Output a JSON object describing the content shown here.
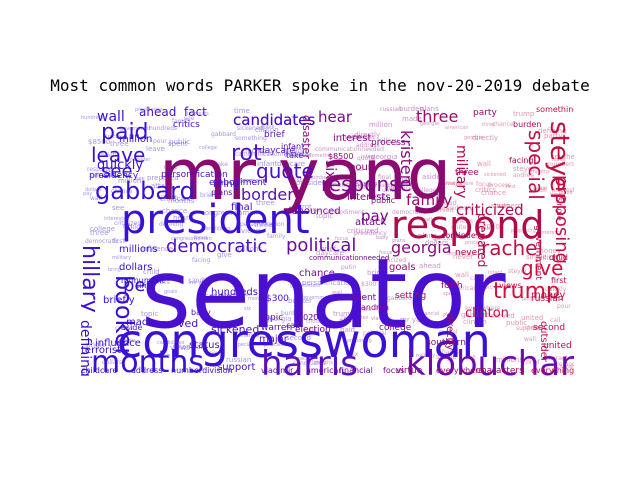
{
  "title": "Most common words PARKER spoke in the nov-20-2019 debate",
  "colors": {
    "blue": "#3a10d4",
    "purple": "#7a0a7c",
    "red": "#d4103a",
    "mid": "#9a0a60"
  },
  "words": [
    {
      "t": "senator",
      "c": "#4a10d0"
    },
    {
      "t": "mr yang",
      "c": "#8a0a70"
    },
    {
      "t": "congresswoman",
      "c": "#3a10d4"
    },
    {
      "t": "president",
      "c": "#3a10d4"
    },
    {
      "t": "respond",
      "c": "#b00a4a"
    },
    {
      "t": "harris",
      "c": "#5a10c0"
    },
    {
      "t": "klobuchar",
      "c": "#6a0ab0"
    },
    {
      "t": "months",
      "c": "#3a10d4"
    },
    {
      "t": "gabbard",
      "c": "#3a10d4"
    },
    {
      "t": "paid",
      "c": "#3a10d4"
    },
    {
      "t": "leave",
      "c": "#3a10d4"
    },
    {
      "t": "candidates",
      "c": "#4a10c8"
    },
    {
      "t": "quote",
      "c": "#4a10c8"
    },
    {
      "t": "response",
      "c": "#7a0a90"
    },
    {
      "t": "steyer",
      "c": "#c01040"
    },
    {
      "t": "booker",
      "c": "#3a10d4"
    },
    {
      "t": "democratic",
      "c": "#4a10c8"
    },
    {
      "t": "trump",
      "c": "#d01040"
    },
    {
      "t": "rachel",
      "c": "#c01048"
    },
    {
      "t": "give",
      "c": "#d01040"
    },
    {
      "t": "see",
      "c": "#3a10d4"
    },
    {
      "t": "border",
      "c": "#5a10b8"
    },
    {
      "t": "political",
      "c": "#6a0aa8"
    },
    {
      "t": "georgia",
      "c": "#8a0a80"
    },
    {
      "t": "special",
      "c": "#c01048"
    },
    {
      "t": "proposing",
      "c": "#c01048"
    },
    {
      "t": "kristen",
      "c": "#8a0a80"
    },
    {
      "t": "three",
      "c": "#9a0a68"
    },
    {
      "t": "family",
      "c": "#9a0a68"
    },
    {
      "t": "criticized",
      "c": "#b00a50"
    },
    {
      "t": "pay",
      "c": "#7a0a88"
    },
    {
      "t": "wall",
      "c": "#3a10d4"
    },
    {
      "t": "ahead",
      "c": "#4a10c8"
    },
    {
      "t": "fact",
      "c": "#4a10c8"
    },
    {
      "t": "hear",
      "c": "#7a0a90"
    },
    {
      "t": "rot",
      "c": "#4a10c8"
    },
    {
      "t": "six",
      "c": "#8a0a80"
    },
    {
      "t": "hillary",
      "c": "#3a10d4"
    },
    {
      "t": "per",
      "c": "#3a10d4"
    },
    {
      "t": "defining",
      "c": "#3a10d4"
    },
    {
      "t": "clinton",
      "c": "#c01048"
    },
    {
      "t": "military",
      "c": "#b00a50"
    },
    {
      "t": "quickly",
      "c": "#3a10d4"
    },
    {
      "t": "million",
      "c": "#3a10d4"
    },
    {
      "t": "served",
      "c": "#4a10c8"
    },
    {
      "t": "hundreds",
      "c": "#4a10c8"
    },
    {
      "t": "influence",
      "c": "#3a10d4"
    },
    {
      "t": "sickened",
      "c": "#4a10c8"
    },
    {
      "t": "terrorist",
      "c": "#3a10d4"
    },
    {
      "t": "status",
      "c": "#4a10c8"
    },
    {
      "t": "chance",
      "c": "#7a0a90"
    },
    {
      "t": "goals",
      "c": "#9a0a68"
    },
    {
      "t": "support",
      "c": "#4a10c8"
    },
    {
      "t": "major",
      "c": "#5a10b8"
    },
    {
      "t": "election",
      "c": "#6a0aa8"
    },
    {
      "t": "personification",
      "c": "#4a10c8"
    },
    {
      "t": "candidates",
      "c": "#4a10c8"
    },
    {
      "t": "pour",
      "c": "#8a0a80"
    },
    {
      "t": "disaster",
      "c": "#8a0a80"
    },
    {
      "t": "interest",
      "c": "#8a0a80"
    },
    {
      "t": "denounced",
      "c": "#6a0aa8"
    },
    {
      "t": "attack",
      "c": "#7a0a90"
    },
    {
      "t": "interests",
      "c": "#7a0a90"
    },
    {
      "t": "prepared",
      "c": "#b00a50"
    },
    {
      "t": "money",
      "c": "#c01048"
    },
    {
      "t": "outsider",
      "c": "#c01048"
    },
    {
      "t": "bring",
      "c": "#4a10c8"
    },
    {
      "t": "final",
      "c": "#4a10c8"
    },
    {
      "t": "briefly",
      "c": "#3a10d4"
    },
    {
      "t": "made",
      "c": "#3a10d4"
    },
    {
      "t": "dollars",
      "c": "#3a10d4"
    },
    {
      "t": "millions",
      "c": "#3a10d4"
    },
    {
      "t": "putin",
      "c": "#4a10c8"
    },
    {
      "t": "$300",
      "c": "#4a10c8"
    },
    {
      "t": "topic",
      "c": "#5a10b8"
    },
    {
      "t": "warren",
      "c": "#5a10b8"
    },
    {
      "t": "party",
      "c": "#9a0a68"
    },
    {
      "t": "forth",
      "c": "#9a0a68"
    },
    {
      "t": "second",
      "c": "#c01048"
    },
    {
      "t": "russian",
      "c": "#c01048"
    },
    {
      "t": "united",
      "c": "#c01048"
    },
    {
      "t": "setting",
      "c": "#b00a50"
    },
    {
      "t": "college",
      "c": "#8a0a80"
    },
    {
      "t": "spent",
      "c": "#8a0a80"
    },
    {
      "t": "southern",
      "c": "#8a0a80"
    },
    {
      "t": "virtue",
      "c": "#8a0a80"
    },
    {
      "t": "characters",
      "c": "#9a0a68"
    },
    {
      "t": "everything",
      "c": "#c01048"
    },
    {
      "t": "everywhere",
      "c": "#9a0a68"
    },
    {
      "t": "focus",
      "c": "#7a0a90"
    },
    {
      "t": "financial",
      "c": "#6a0aa8"
    },
    {
      "t": "american",
      "c": "#6a0aa8"
    },
    {
      "t": "vladimir",
      "c": "#5a10b8"
    },
    {
      "t": "childcare",
      "c": "#3a10d4"
    },
    {
      "t": "address",
      "c": "#3a10d4"
    },
    {
      "t": "numberdivision",
      "c": "#3a10d4"
    },
    {
      "t": "process",
      "c": "#8a0a80"
    },
    {
      "t": "never",
      "c": "#b00a50"
    },
    {
      "t": "three",
      "c": "#9a0a68"
    },
    {
      "t": "government",
      "c": "#c01048"
    },
    {
      "t": "directly",
      "c": "#9a0a68"
    },
    {
      "t": "embodiment",
      "c": "#4a10c8"
    },
    {
      "t": "daycare",
      "c": "#5a10b8"
    },
    {
      "t": "critics",
      "c": "#4a10c8"
    },
    {
      "t": "presidency",
      "c": "#3a10d4"
    },
    {
      "t": "$8500",
      "c": "#8a0a80"
    },
    {
      "t": "plans",
      "c": "#5a10b8"
    },
    {
      "t": "brief",
      "c": "#5a10b8"
    },
    {
      "t": "infant",
      "c": "#5a10b8"
    },
    {
      "t": "facing",
      "c": "#b00a50"
    },
    {
      "t": "burden",
      "c": "#b00a50"
    },
    {
      "t": "something",
      "c": "#c01048"
    },
    {
      "t": "time",
      "c": "#3a10d4"
    },
    {
      "t": "monument",
      "c": "#3a10d4"
    },
    {
      "t": "aside",
      "c": "#4a10c8"
    },
    {
      "t": "baby",
      "c": "#4a10c8"
    },
    {
      "t": "call",
      "c": "#5a10b8"
    },
    {
      "t": "take",
      "c": "#5a10b8"
    },
    {
      "t": "2020",
      "c": "#6a0aa8"
    },
    {
      "t": "communicationneeded",
      "c": "#7a0a90"
    },
    {
      "t": "andrea",
      "c": "#8a0a80"
    },
    {
      "t": "public",
      "c": "#8a0a80"
    },
    {
      "t": "continue",
      "c": "#9a0a68"
    },
    {
      "t": "child",
      "c": "#c01048"
    },
    {
      "t": "views",
      "c": "#c01048"
    },
    {
      "t": "first",
      "c": "#c01048"
    },
    {
      "t": "single",
      "c": "#c01048"
    }
  ]
}
